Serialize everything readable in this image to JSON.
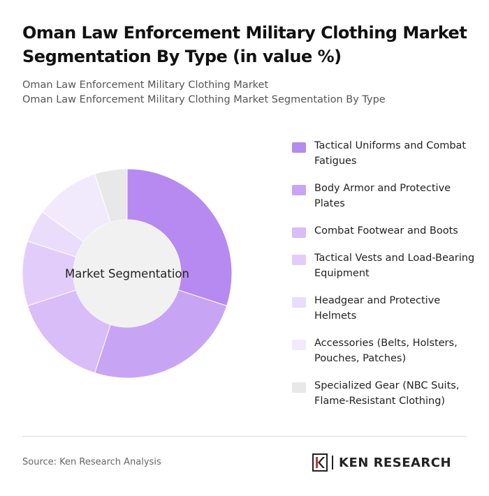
{
  "title": "Oman Law Enforcement Military Clothing Market Segmentation By Type (in value %)",
  "subtitle": {
    "line1": "Oman Law Enforcement Military Clothing Market",
    "line2": "Oman Law Enforcement Military Clothing Market Segmentation By Type"
  },
  "chart_data": {
    "type": "pie",
    "variant": "donut",
    "center_label": "Market Segmentation",
    "legend_position": "right",
    "categories": [
      "Tactical Uniforms and Combat Fatigues",
      "Body Armor and Protective Plates",
      "Combat Footwear and Boots",
      "Tactical Vests and Load-Bearing Equipment",
      "Headgear and Protective Helmets",
      "Accessories (Belts, Holsters, Pouches, Patches)",
      "Specialized Gear (NBC Suits, Flame-Resistant Clothing)"
    ],
    "values": [
      30,
      25,
      15,
      10,
      5,
      10,
      5
    ],
    "colors": [
      "#b68af0",
      "#c8a4f5",
      "#d8bdf8",
      "#e2cdfa",
      "#eadcfb",
      "#f1eafc",
      "#e8e8e8"
    ]
  },
  "legend": {
    "items": [
      {
        "label_line1": "Tactical Uniforms and Combat",
        "label_line2": "Fatigues"
      },
      {
        "label_line1": "Body Armor and Protective",
        "label_line2": "Plates"
      },
      {
        "label_line1": "Combat Footwear and Boots",
        "label_line2": ""
      },
      {
        "label_line1": "Tactical Vests and Load-Bearing",
        "label_line2": "Equipment"
      },
      {
        "label_line1": "Headgear and Protective",
        "label_line2": "Helmets"
      },
      {
        "label_line1": "Accessories (Belts, Holsters,",
        "label_line2": "Pouches, Patches)"
      },
      {
        "label_line1": "Specialized Gear (NBC Suits,",
        "label_line2": "Flame-Resistant Clothing)"
      }
    ]
  },
  "footer": {
    "source": "Source: Ken Research Analysis",
    "logo_text": "KEN RESEARCH",
    "logo_mark": "K"
  }
}
